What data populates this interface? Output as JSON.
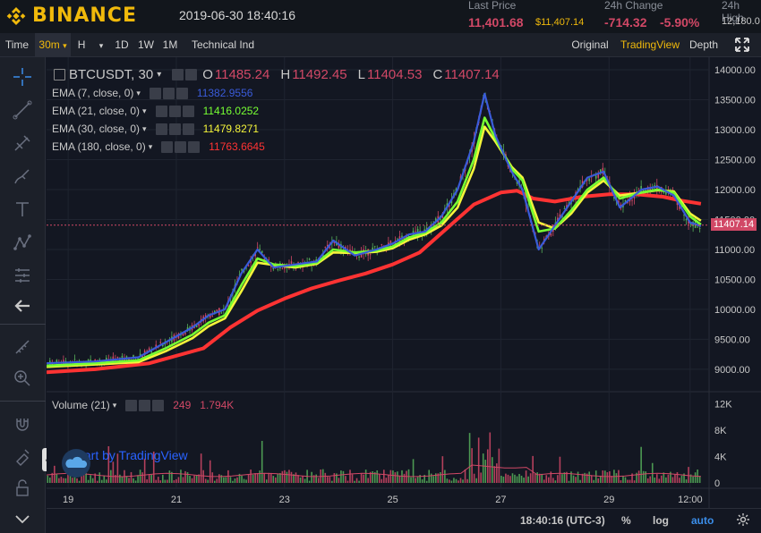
{
  "header": {
    "brand": "BINANCE",
    "datetime": "2019-06-30 18:40:16",
    "last_price_label": "Last Price",
    "last_price": "11,401.68",
    "last_price_usd": "$11,407.14",
    "change_label": "24h Change",
    "change_value": "-714.32",
    "change_pct": "-5.90%",
    "high_label": "24h High",
    "high_value": "12,180.0"
  },
  "toolbar": {
    "time_label": "Time",
    "interval": "30m",
    "interval_caret": "▾",
    "unit": "H",
    "unit_caret": "▾",
    "d1": "1D",
    "w1": "1W",
    "m1": "1M",
    "indicators": "Technical Ind",
    "original": "Original",
    "tradingview": "TradingView",
    "depth": "Depth"
  },
  "legend": {
    "symbol": "BTCUSDT, 30",
    "o_label": "O",
    "o": "11485.24",
    "h_label": "H",
    "h": "11492.45",
    "l_label": "L",
    "l": "11404.53",
    "c_label": "C",
    "c": "11407.14",
    "ema": [
      {
        "label": "EMA (7, close, 0)",
        "value": "11382.9556",
        "color": "#3a5bd9"
      },
      {
        "label": "EMA (21, close, 0)",
        "value": "11416.0252",
        "color": "#77ff33"
      },
      {
        "label": "EMA (30, close, 0)",
        "value": "11479.8271",
        "color": "#f5f53a"
      },
      {
        "label": "EMA (180, close, 0)",
        "value": "11763.6645",
        "color": "#ff3333"
      }
    ],
    "volume_label": "Volume (21)",
    "volume_value": "249",
    "volume_ma": "1.794K"
  },
  "price_tag": "11407.14",
  "watermark": "Chart by TradingView",
  "bottom": {
    "time": "18:40:16 (UTC-3)",
    "pct": "%",
    "log": "log",
    "auto": "auto"
  },
  "colors": {
    "up": "#57b05a",
    "down": "#d14866",
    "ema7": "#3a5bd9",
    "ema21": "#77ff33",
    "ema30": "#f5f53a",
    "ema180": "#ff3333",
    "accent": "#f0b90b"
  },
  "chart_data": {
    "type": "line",
    "symbol": "BTCUSDT",
    "y_ticks": [
      9000,
      9500,
      10000,
      10500,
      11000,
      11500,
      12000,
      12500,
      13000,
      13500,
      14000
    ],
    "y_tick_labels": [
      "9000.00",
      "9500.00",
      "10000.00",
      "10500.00",
      "11000.00",
      "11500.00",
      "12000.00",
      "12500.00",
      "13000.00",
      "13500.00",
      "14000.00"
    ],
    "ylim": [
      8700,
      14150
    ],
    "x_ticks": [
      19,
      21,
      23,
      25,
      27,
      29,
      30.5
    ],
    "x_tick_labels": [
      "19",
      "21",
      "23",
      "25",
      "27",
      "29",
      "12:00"
    ],
    "xlim": [
      18.6,
      30.85
    ],
    "volume_ticks": [
      0,
      4000,
      8000,
      12000
    ],
    "volume_tick_labels": [
      "0",
      "4K",
      "8K",
      "12K"
    ],
    "volume_ylim": [
      0,
      13000
    ],
    "series": [
      {
        "name": "EMA (7, close, 0)",
        "color": "#3a5bd9",
        "x": [
          18.6,
          19.5,
          20.3,
          20.8,
          21.3,
          21.6,
          21.9,
          22.2,
          22.5,
          22.8,
          23.2,
          23.6,
          23.9,
          24.3,
          24.7,
          25.0,
          25.3,
          25.6,
          25.9,
          26.2,
          26.5,
          26.7,
          26.9,
          27.2,
          27.4,
          27.7,
          28.0,
          28.3,
          28.6,
          28.9,
          29.2,
          29.6,
          29.9,
          30.2,
          30.5,
          30.7
        ],
        "y": [
          9100,
          9130,
          9200,
          9450,
          9700,
          9900,
          10000,
          10600,
          11000,
          10700,
          10750,
          10800,
          11150,
          10900,
          11000,
          11100,
          11250,
          11300,
          11550,
          12000,
          12800,
          13600,
          12900,
          12300,
          12000,
          11000,
          11400,
          11800,
          12200,
          12300,
          11700,
          12000,
          12050,
          11900,
          11450,
          11390
        ]
      },
      {
        "name": "EMA (21, close, 0)",
        "color": "#77ff33",
        "x": [
          18.6,
          19.5,
          20.3,
          20.8,
          21.3,
          21.6,
          21.9,
          22.2,
          22.5,
          22.8,
          23.2,
          23.6,
          23.9,
          24.3,
          24.7,
          25.0,
          25.3,
          25.6,
          25.9,
          26.2,
          26.5,
          26.7,
          26.9,
          27.2,
          27.4,
          27.7,
          28.0,
          28.3,
          28.6,
          28.9,
          29.2,
          29.6,
          29.9,
          30.2,
          30.5,
          30.7
        ],
        "y": [
          9060,
          9100,
          9150,
          9350,
          9580,
          9780,
          9900,
          10400,
          10850,
          10750,
          10720,
          10780,
          11000,
          10950,
          10980,
          11050,
          11200,
          11280,
          11450,
          11800,
          12500,
          13200,
          12850,
          12350,
          12150,
          11300,
          11350,
          11650,
          12000,
          12200,
          11850,
          11950,
          12000,
          11950,
          11550,
          11416
        ]
      },
      {
        "name": "EMA (30, close, 0)",
        "color": "#f5f53a",
        "x": [
          18.6,
          19.5,
          20.3,
          20.8,
          21.3,
          21.6,
          21.9,
          22.2,
          22.5,
          22.8,
          23.2,
          23.6,
          23.9,
          24.3,
          24.7,
          25.0,
          25.3,
          25.6,
          25.9,
          26.2,
          26.5,
          26.7,
          26.9,
          27.2,
          27.4,
          27.7,
          28.0,
          28.3,
          28.6,
          28.9,
          29.2,
          29.6,
          29.9,
          30.2,
          30.5,
          30.7
        ],
        "y": [
          9040,
          9080,
          9120,
          9300,
          9520,
          9720,
          9850,
          10300,
          10780,
          10740,
          10700,
          10760,
          10950,
          10940,
          10960,
          11020,
          11160,
          11250,
          11400,
          11700,
          12350,
          13050,
          12800,
          12380,
          12200,
          11450,
          11350,
          11600,
          11950,
          12150,
          11900,
          11950,
          11990,
          11970,
          11600,
          11480
        ]
      },
      {
        "name": "EMA (180, close, 0)",
        "color": "#ff3333",
        "x": [
          18.6,
          19.5,
          20.5,
          21.5,
          22.0,
          22.5,
          23.0,
          23.5,
          24.0,
          24.5,
          25.0,
          25.5,
          26.0,
          26.5,
          27.0,
          27.3,
          27.6,
          28.0,
          28.5,
          29.0,
          29.5,
          30.0,
          30.3,
          30.7
        ],
        "y": [
          8950,
          9000,
          9100,
          9350,
          9700,
          9980,
          10180,
          10350,
          10480,
          10600,
          10750,
          10950,
          11350,
          11750,
          11950,
          11980,
          11850,
          11800,
          11880,
          11920,
          11920,
          11880,
          11820,
          11764
        ]
      }
    ]
  }
}
